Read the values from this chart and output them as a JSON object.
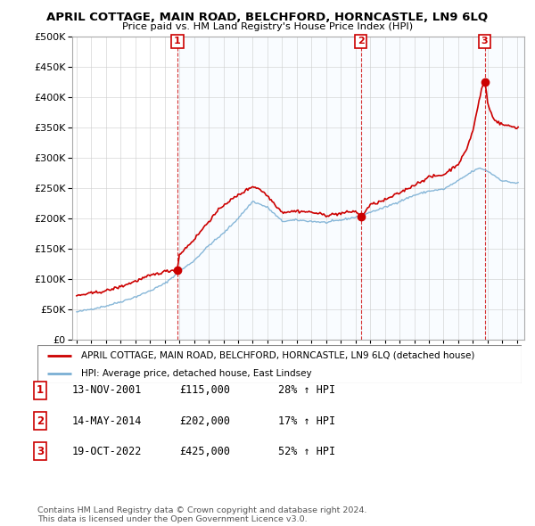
{
  "title": "APRIL COTTAGE, MAIN ROAD, BELCHFORD, HORNCASTLE, LN9 6LQ",
  "subtitle": "Price paid vs. HM Land Registry's House Price Index (HPI)",
  "ylim": [
    0,
    500000
  ],
  "yticks": [
    0,
    50000,
    100000,
    150000,
    200000,
    250000,
    300000,
    350000,
    400000,
    450000,
    500000
  ],
  "xlim_start": 1994.7,
  "xlim_end": 2025.5,
  "sale_dates": [
    2001.87,
    2014.37,
    2022.8
  ],
  "sale_prices": [
    115000,
    202000,
    425000
  ],
  "sale_labels": [
    "1",
    "2",
    "3"
  ],
  "legend_red": "APRIL COTTAGE, MAIN ROAD, BELCHFORD, HORNCASTLE, LN9 6LQ (detached house)",
  "legend_blue": "HPI: Average price, detached house, East Lindsey",
  "table_rows": [
    [
      "1",
      "13-NOV-2001",
      "£115,000",
      "28% ↑ HPI"
    ],
    [
      "2",
      "14-MAY-2014",
      "£202,000",
      "17% ↑ HPI"
    ],
    [
      "3",
      "19-OCT-2022",
      "£425,000",
      "52% ↑ HPI"
    ]
  ],
  "footer": "Contains HM Land Registry data © Crown copyright and database right 2024.\nThis data is licensed under the Open Government Licence v3.0.",
  "red_color": "#cc0000",
  "blue_color": "#7aafd4",
  "shade_color": "#ddeeff",
  "grid_color": "#cccccc",
  "hpi_nodes_x": [
    1995,
    1996,
    1997,
    1998,
    1999,
    2000,
    2001,
    2002,
    2003,
    2004,
    2005,
    2006,
    2007,
    2008,
    2009,
    2010,
    2011,
    2012,
    2013,
    2014,
    2015,
    2016,
    2017,
    2018,
    2019,
    2020,
    2021,
    2022,
    2022.5,
    2023,
    2023.5,
    2024,
    2025
  ],
  "hpi_nodes_y": [
    45000,
    50000,
    55000,
    62000,
    70000,
    80000,
    92000,
    112000,
    130000,
    155000,
    175000,
    200000,
    228000,
    218000,
    195000,
    197000,
    195000,
    193000,
    197000,
    202000,
    210000,
    218000,
    228000,
    238000,
    245000,
    248000,
    262000,
    278000,
    283000,
    278000,
    270000,
    262000,
    258000
  ],
  "red_nodes_x": [
    1995,
    1996,
    1997,
    1998,
    1999,
    2000,
    2001,
    2001.87,
    2002,
    2003,
    2004,
    2005,
    2006,
    2007,
    2007.5,
    2008,
    2009,
    2010,
    2011,
    2012,
    2013,
    2014,
    2014.37,
    2015,
    2016,
    2017,
    2018,
    2019,
    2020,
    2021,
    2021.5,
    2022,
    2022.6,
    2022.8,
    2022.9,
    2023,
    2023.3,
    2023.6,
    2024,
    2025
  ],
  "red_nodes_y": [
    72000,
    76000,
    80000,
    87000,
    96000,
    105000,
    112000,
    115000,
    140000,
    165000,
    195000,
    222000,
    238000,
    253000,
    248000,
    237000,
    210000,
    212000,
    210000,
    205000,
    208000,
    212000,
    202000,
    222000,
    230000,
    242000,
    255000,
    268000,
    272000,
    290000,
    310000,
    345000,
    415000,
    425000,
    415000,
    390000,
    370000,
    360000,
    355000,
    350000
  ]
}
